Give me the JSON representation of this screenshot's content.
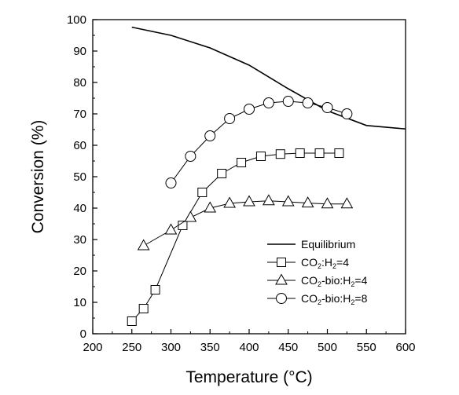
{
  "chart_data": {
    "type": "line",
    "xlabel": "Temperature (°C)",
    "ylabel": "Conversion (%)",
    "xlim": [
      200,
      600
    ],
    "ylim": [
      0,
      100
    ],
    "xticks": [
      200,
      250,
      300,
      350,
      400,
      450,
      500,
      550,
      600
    ],
    "yticks": [
      0,
      10,
      20,
      30,
      40,
      50,
      60,
      70,
      80,
      90,
      100
    ],
    "grid": false,
    "legend_position": "bottom-right",
    "series": [
      {
        "name": "Equilibrium",
        "legend_parts": [
          {
            "text": "Equilibrium"
          }
        ],
        "marker": "none",
        "points": [
          [
            250,
            97.6
          ],
          [
            300,
            95.0
          ],
          [
            350,
            91.0
          ],
          [
            400,
            85.5
          ],
          [
            450,
            78.0
          ],
          [
            500,
            71.0
          ],
          [
            550,
            66.3
          ],
          [
            600,
            65.2
          ]
        ]
      },
      {
        "name": "CO2:H2=4",
        "legend_parts": [
          {
            "text": "CO"
          },
          {
            "text": "2",
            "sub": true
          },
          {
            "text": ":H"
          },
          {
            "text": "2",
            "sub": true
          },
          {
            "text": "=4"
          }
        ],
        "marker": "square",
        "points": [
          [
            250,
            4
          ],
          [
            265,
            8
          ],
          [
            280,
            14
          ],
          [
            315,
            34.5
          ],
          [
            340,
            45
          ],
          [
            365,
            51
          ],
          [
            390,
            54.5
          ],
          [
            415,
            56.5
          ],
          [
            440,
            57.2
          ],
          [
            465,
            57.5
          ],
          [
            490,
            57.5
          ],
          [
            515,
            57.5
          ]
        ]
      },
      {
        "name": "CO2-bio:H2=4",
        "legend_parts": [
          {
            "text": "CO"
          },
          {
            "text": "2",
            "sub": true
          },
          {
            "text": "-bio:H"
          },
          {
            "text": "2",
            "sub": true
          },
          {
            "text": "=4"
          }
        ],
        "marker": "triangle",
        "points": [
          [
            265,
            28
          ],
          [
            300,
            33
          ],
          [
            325,
            37
          ],
          [
            350,
            40
          ],
          [
            375,
            41.5
          ],
          [
            400,
            42
          ],
          [
            425,
            42.3
          ],
          [
            450,
            42
          ],
          [
            475,
            41.6
          ],
          [
            500,
            41.3
          ],
          [
            525,
            41.3
          ]
        ]
      },
      {
        "name": "CO2-bio:H2=8",
        "legend_parts": [
          {
            "text": "CO"
          },
          {
            "text": "2",
            "sub": true
          },
          {
            "text": "-bio:H"
          },
          {
            "text": "2",
            "sub": true
          },
          {
            "text": "=8"
          }
        ],
        "marker": "circle",
        "points": [
          [
            300,
            48
          ],
          [
            325,
            56.5
          ],
          [
            350,
            63
          ],
          [
            375,
            68.5
          ],
          [
            400,
            71.5
          ],
          [
            425,
            73.5
          ],
          [
            450,
            74
          ],
          [
            475,
            73.5
          ],
          [
            500,
            72
          ],
          [
            525,
            70
          ]
        ]
      }
    ]
  }
}
